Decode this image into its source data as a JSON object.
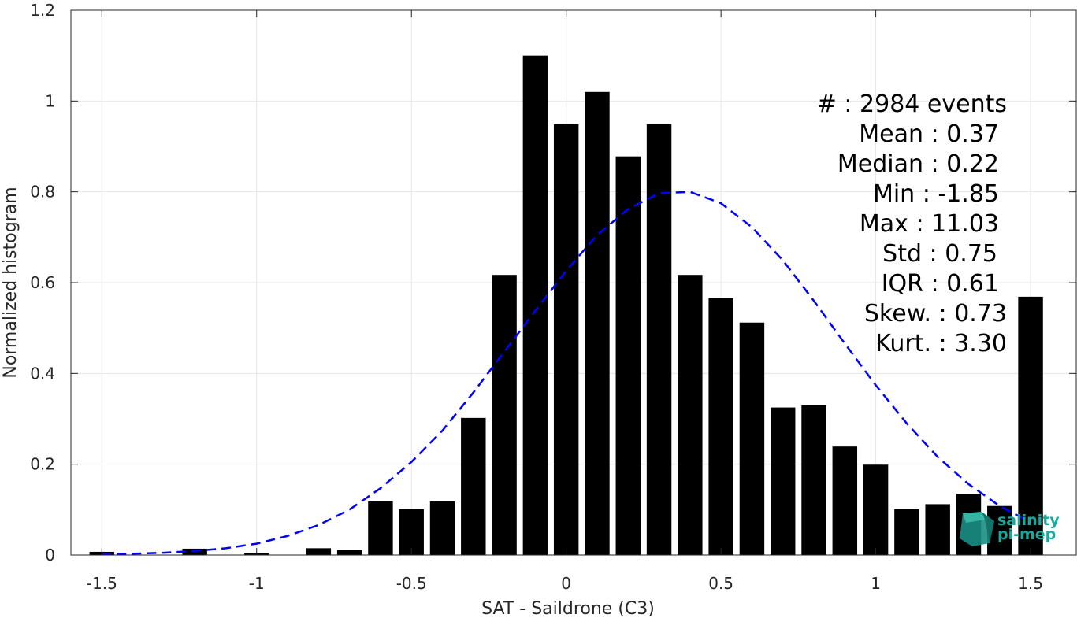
{
  "chart_data": {
    "type": "bar",
    "xlabel": "SAT - Saildrone (C3)",
    "ylabel": "Normalized histogram",
    "xlim": [
      -1.6,
      1.65
    ],
    "ylim": [
      0,
      1.2
    ],
    "grid": true,
    "bar_width": 0.08,
    "xticks": [
      -1.5,
      -1,
      -0.5,
      0,
      0.5,
      1,
      1.5
    ],
    "xtick_labels": [
      "-1.5",
      "-1",
      "-0.5",
      "0",
      "0.5",
      "1",
      "1.5"
    ],
    "yticks": [
      0,
      0.2,
      0.4,
      0.6,
      0.8,
      1,
      1.2
    ],
    "ytick_labels": [
      "0",
      "0.2",
      "0.4",
      "0.6",
      "0.8",
      "1",
      "1.2"
    ],
    "bars": {
      "x": [
        -1.5,
        -1.4,
        -1.3,
        -1.2,
        -1.1,
        -1.0,
        -0.9,
        -0.8,
        -0.7,
        -0.6,
        -0.5,
        -0.4,
        -0.3,
        -0.2,
        -0.1,
        0.0,
        0.1,
        0.2,
        0.3,
        0.4,
        0.5,
        0.6,
        0.7,
        0.8,
        0.9,
        1.0,
        1.1,
        1.2,
        1.3,
        1.4,
        1.5
      ],
      "values": [
        0.007,
        0,
        0,
        0.014,
        0,
        0.004,
        0,
        0.015,
        0.011,
        0.118,
        0.101,
        0.118,
        0.302,
        0.617,
        1.1,
        0.949,
        1.02,
        0.878,
        0.949,
        0.617,
        0.566,
        0.512,
        0.325,
        0.33,
        0.239,
        0.199,
        0.101,
        0.112,
        0.135,
        0.108,
        0.569
      ]
    },
    "fit_curve": {
      "style": "dashed",
      "color": "#0000ff",
      "x": [
        -1.5,
        -1.4,
        -1.3,
        -1.2,
        -1.1,
        -1.0,
        -0.9,
        -0.8,
        -0.7,
        -0.6,
        -0.5,
        -0.4,
        -0.3,
        -0.2,
        -0.1,
        0.0,
        0.1,
        0.2,
        0.3,
        0.4,
        0.5,
        0.6,
        0.7,
        0.8,
        0.9,
        1.0,
        1.1,
        1.2,
        1.3,
        1.4,
        1.5
      ],
      "y": [
        0.002,
        0.003,
        0.005,
        0.009,
        0.015,
        0.025,
        0.042,
        0.066,
        0.1,
        0.147,
        0.205,
        0.274,
        0.358,
        0.448,
        0.538,
        0.626,
        0.705,
        0.762,
        0.797,
        0.8,
        0.775,
        0.722,
        0.649,
        0.56,
        0.466,
        0.374,
        0.29,
        0.216,
        0.156,
        0.108,
        0.072
      ]
    },
    "annotations": [
      "#  : 2984 events",
      "Mean : 0.37",
      "Median : 0.22",
      "Min : -1.85",
      "Max : 11.03",
      "Std : 0.75",
      "IQR : 0.61",
      "Skew. : 0.73",
      "Kurt. : 3.30"
    ]
  },
  "logo": {
    "line1": "salinity",
    "line2": "pi-mep",
    "color": "#1aa89a"
  },
  "colors": {
    "bar": "#000000",
    "grid": "#e6e6e6",
    "axis": "#262626"
  }
}
